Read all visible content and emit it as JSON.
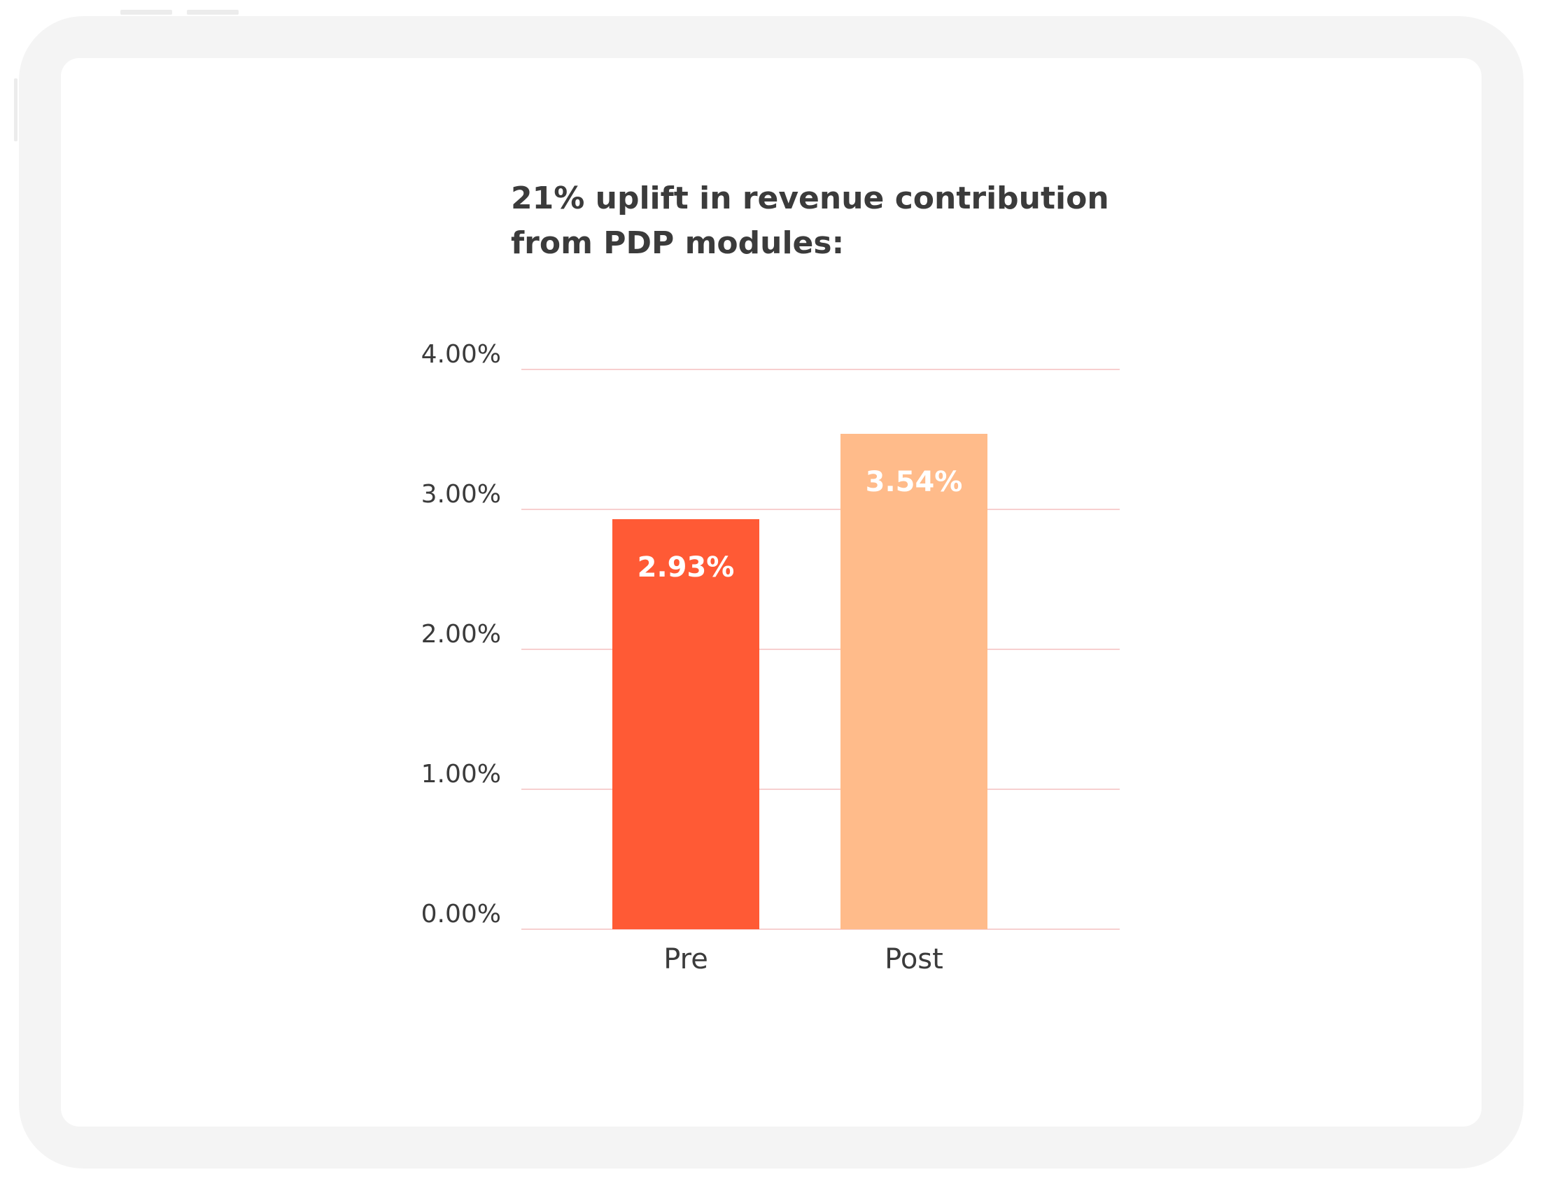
{
  "chart_data": {
    "type": "bar",
    "title_lines": [
      "21% uplift in revenue contribution",
      "from PDP modules:"
    ],
    "categories": [
      "Pre",
      "Post"
    ],
    "values": [
      2.93,
      3.54
    ],
    "value_labels": [
      "2.93%",
      "3.54%"
    ],
    "bar_colors": [
      "#ff5a35",
      "#ffbb8a"
    ],
    "y_ticks": [
      0,
      1,
      2,
      3,
      4
    ],
    "y_tick_labels": [
      "0.00%",
      "1.00%",
      "2.00%",
      "3.00%",
      "4.00%"
    ],
    "ylim": [
      0,
      4
    ],
    "grid": true,
    "grid_color": "#f7cfcf",
    "xlabel": "",
    "ylabel": ""
  }
}
